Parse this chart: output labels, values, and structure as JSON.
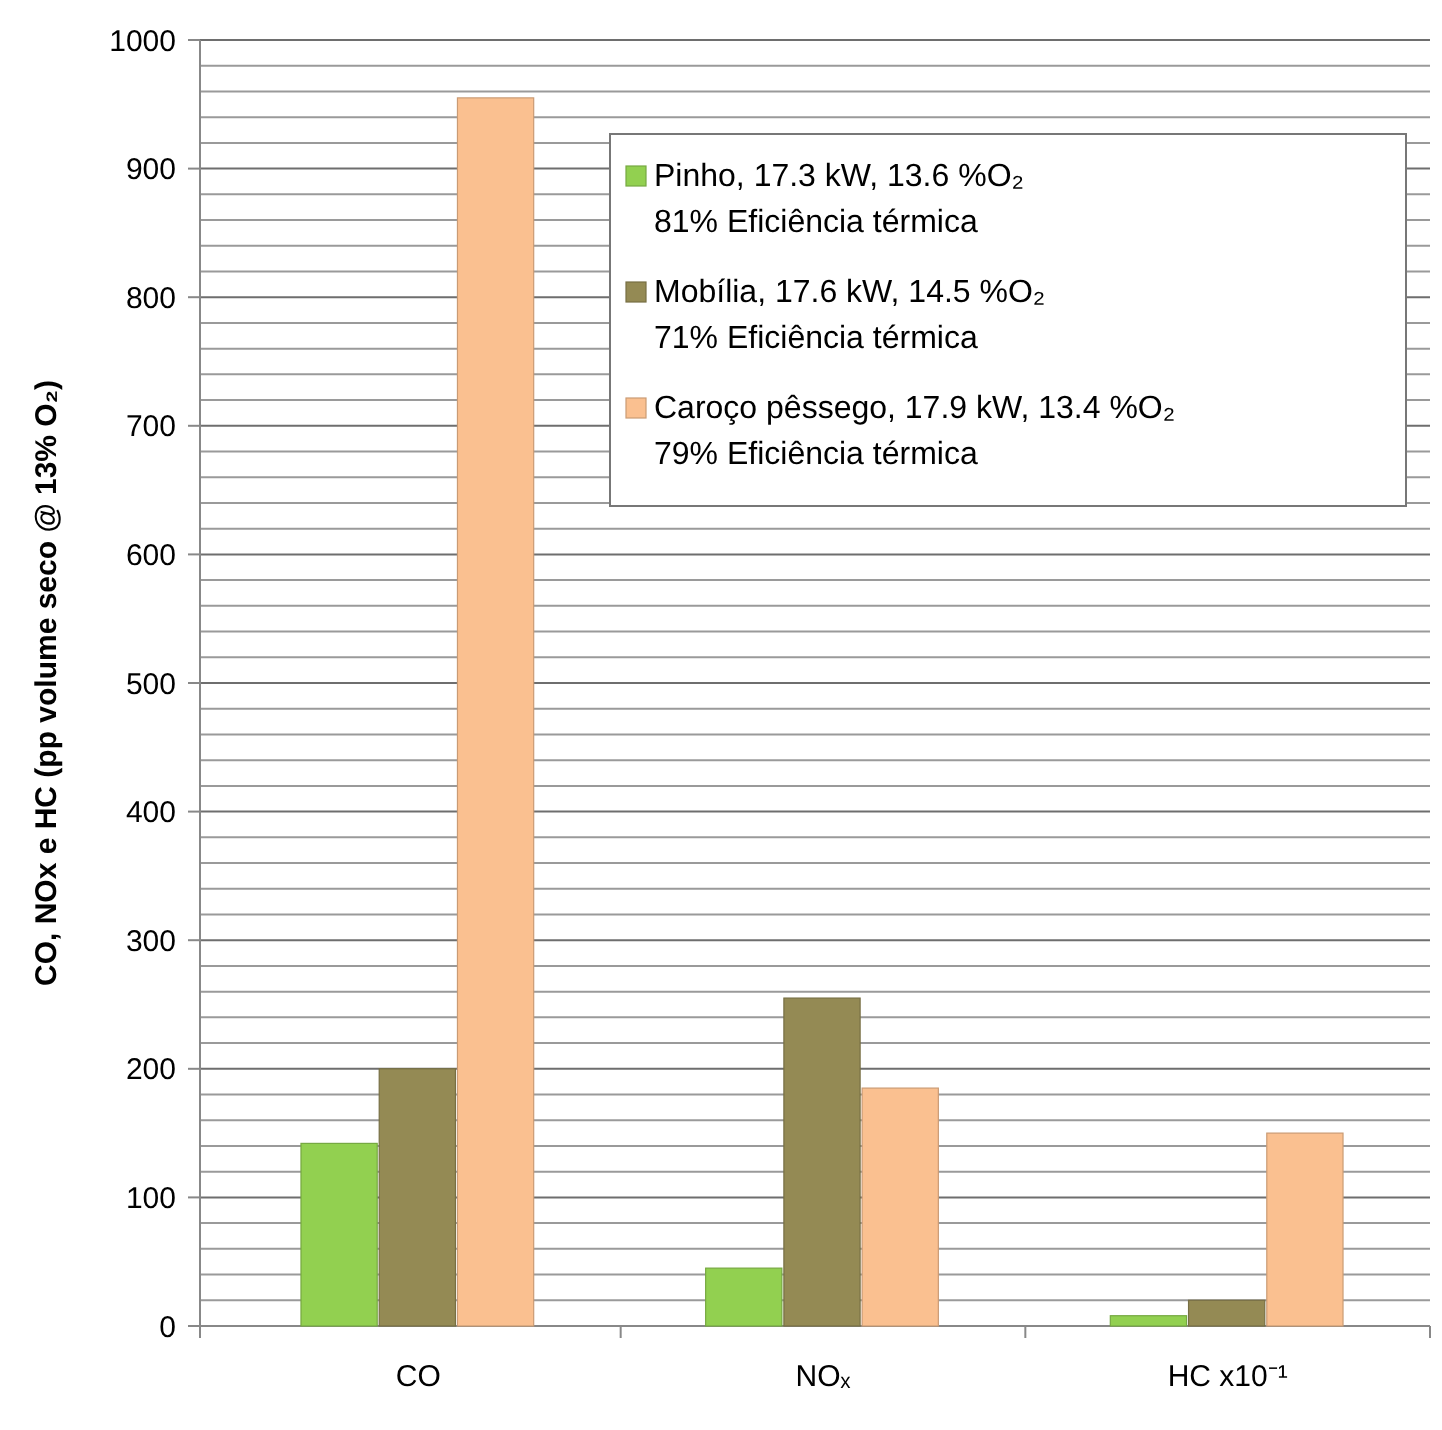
{
  "chart_data": {
    "type": "bar",
    "ylabel": "CO, NOx e HC (pp volume seco @ 13% O₂)",
    "categories": [
      "CO",
      "NOₓ",
      "HC x10⁻¹"
    ],
    "series": [
      {
        "name": "Pinho, 17.3 kW, 13.6 %O₂\n81% Eficiência térmica",
        "color": "#92d050",
        "values": [
          142,
          45,
          8
        ]
      },
      {
        "name": "Mobília, 17.6 kW, 14.5 %O₂\n71% Eficiência térmica",
        "color": "#948a54",
        "values": [
          200,
          255,
          20
        ]
      },
      {
        "name": "Caroço pêssego, 17.9 kW, 13.4 %O₂\n79% Eficiência térmica",
        "color": "#fac090",
        "values": [
          955,
          185,
          150
        ]
      }
    ],
    "ylim": [
      0,
      1000
    ],
    "yticks": [
      0,
      {
        "value": 20,
        "label": null
      },
      {
        "value": 40,
        "label": null
      },
      {
        "value": 60,
        "label": null
      },
      {
        "value": 80,
        "label": null
      },
      100,
      {
        "value": 120,
        "label": null
      },
      {
        "value": 140,
        "label": null
      },
      {
        "value": 160,
        "label": null
      },
      {
        "value": 180,
        "label": null
      },
      200,
      {
        "value": 220,
        "label": null
      },
      {
        "value": 240,
        "label": null
      },
      {
        "value": 260,
        "label": null
      },
      {
        "value": 280,
        "label": null
      },
      300,
      {
        "value": 320,
        "label": null
      },
      {
        "value": 340,
        "label": null
      },
      {
        "value": 360,
        "label": null
      },
      {
        "value": 380,
        "label": null
      },
      400,
      {
        "value": 420,
        "label": null
      },
      {
        "value": 440,
        "label": null
      },
      {
        "value": 460,
        "label": null
      },
      {
        "value": 480,
        "label": null
      },
      500,
      {
        "value": 520,
        "label": null
      },
      {
        "value": 540,
        "label": null
      },
      {
        "value": 560,
        "label": null
      },
      {
        "value": 580,
        "label": null
      },
      600,
      {
        "value": 620,
        "label": null
      },
      {
        "value": 640,
        "label": null
      },
      {
        "value": 660,
        "label": null
      },
      {
        "value": 680,
        "label": null
      },
      700,
      {
        "value": 720,
        "label": null
      },
      {
        "value": 740,
        "label": null
      },
      {
        "value": 760,
        "label": null
      },
      {
        "value": 780,
        "label": null
      },
      800,
      {
        "value": 820,
        "label": null
      },
      {
        "value": 840,
        "label": null
      },
      {
        "value": 860,
        "label": null
      },
      {
        "value": 880,
        "label": null
      },
      900,
      {
        "value": 920,
        "label": null
      },
      {
        "value": 940,
        "label": null
      },
      {
        "value": 960,
        "label": null
      },
      {
        "value": 980,
        "label": null
      },
      1000
    ],
    "grid": true,
    "legend": "top right"
  }
}
